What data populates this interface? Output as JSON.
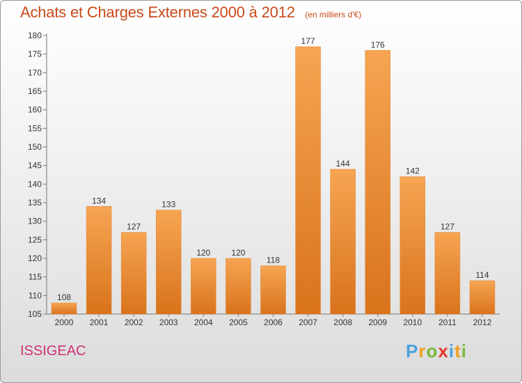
{
  "header": {
    "title": "Achats et Charges Externes 2000 à 2012",
    "subtitle": "(en milliers d'€)"
  },
  "footer": {
    "place": "ISSIGEAC",
    "logo_text": "Proxiti"
  },
  "colors": {
    "bar_top": "#f6a553",
    "bar_bottom": "#d9731c",
    "title": "#c84a1a",
    "place": "#cc3377",
    "logo_letters": [
      "#4aa3df",
      "#f0a020",
      "#77b83a",
      "#e8352a",
      "#4aa3df",
      "#f0a020",
      "#77b83a"
    ]
  },
  "chart_data": {
    "type": "bar",
    "categories": [
      "2000",
      "2001",
      "2002",
      "2003",
      "2004",
      "2005",
      "2006",
      "2007",
      "2008",
      "2009",
      "2010",
      "2011",
      "2012"
    ],
    "values": [
      108,
      134,
      127,
      133,
      120,
      120,
      118,
      177,
      144,
      176,
      142,
      127,
      114
    ],
    "ylim": [
      105,
      180
    ],
    "yticks": [
      105,
      110,
      115,
      120,
      125,
      130,
      135,
      140,
      145,
      150,
      155,
      160,
      165,
      170,
      175,
      180
    ],
    "grid": false,
    "title": "Achats et Charges Externes 2000 à 2012"
  }
}
